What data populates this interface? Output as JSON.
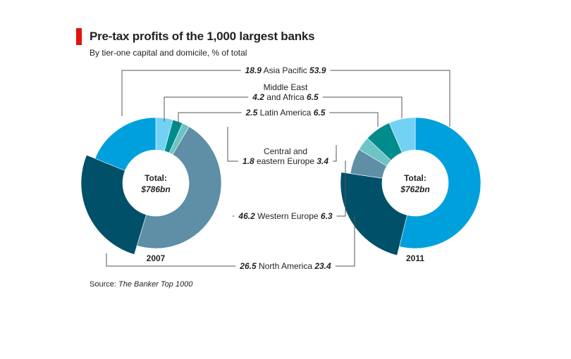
{
  "header": {
    "title": "Pre-tax profits of the 1,000 largest banks",
    "subtitle": "By tier-one capital and domicile, % of total"
  },
  "source": {
    "label": "Source:",
    "name": "The Banker Top 1000"
  },
  "colors": {
    "accent_red": "#e3120b",
    "Asia Pacific": "#00a0dc",
    "Middle East and Africa": "#74d1f6",
    "Latin America": "#008c8c",
    "Central and eastern Europe": "#6cc4c4",
    "Western Europe": "#5e8fa7",
    "North America": "#005069",
    "leader_line": "#555555"
  },
  "chart_data": {
    "type": "pie",
    "donut": true,
    "title": "Pre-tax profits of the 1,000 largest banks",
    "subtitle": "By tier-one capital and domicile, % of total",
    "units": "% of total",
    "categories": [
      "Asia Pacific",
      "Middle East and Africa",
      "Latin America",
      "Central and eastern Europe",
      "Western Europe",
      "North America"
    ],
    "series": [
      {
        "name": "2007",
        "total_label": "Total:",
        "total": "$786bn",
        "values": [
          18.9,
          4.2,
          2.5,
          1.8,
          46.2,
          26.5
        ]
      },
      {
        "name": "2011",
        "total_label": "Total:",
        "total": "$762bn",
        "values": [
          53.9,
          6.5,
          6.5,
          3.4,
          6.3,
          23.4
        ]
      }
    ],
    "labels": [
      {
        "category": "Asia Pacific",
        "lines": [
          "Asia Pacific"
        ],
        "left": "18.9",
        "right": "53.9"
      },
      {
        "category": "Middle East and Africa",
        "lines": [
          "Middle East",
          "and Africa"
        ],
        "left": "4.2",
        "right": "6.5"
      },
      {
        "category": "Latin America",
        "lines": [
          "Latin America"
        ],
        "left": "2.5",
        "right": "6.5"
      },
      {
        "category": "Central and eastern Europe",
        "lines": [
          "Central and",
          "eastern Europe"
        ],
        "left": "1.8",
        "right": "3.4"
      },
      {
        "category": "Western Europe",
        "lines": [
          "Western Europe"
        ],
        "left": "46.2",
        "right": "6.3"
      },
      {
        "category": "North America",
        "lines": [
          "North America"
        ],
        "left": "26.5",
        "right": "23.4"
      }
    ]
  }
}
